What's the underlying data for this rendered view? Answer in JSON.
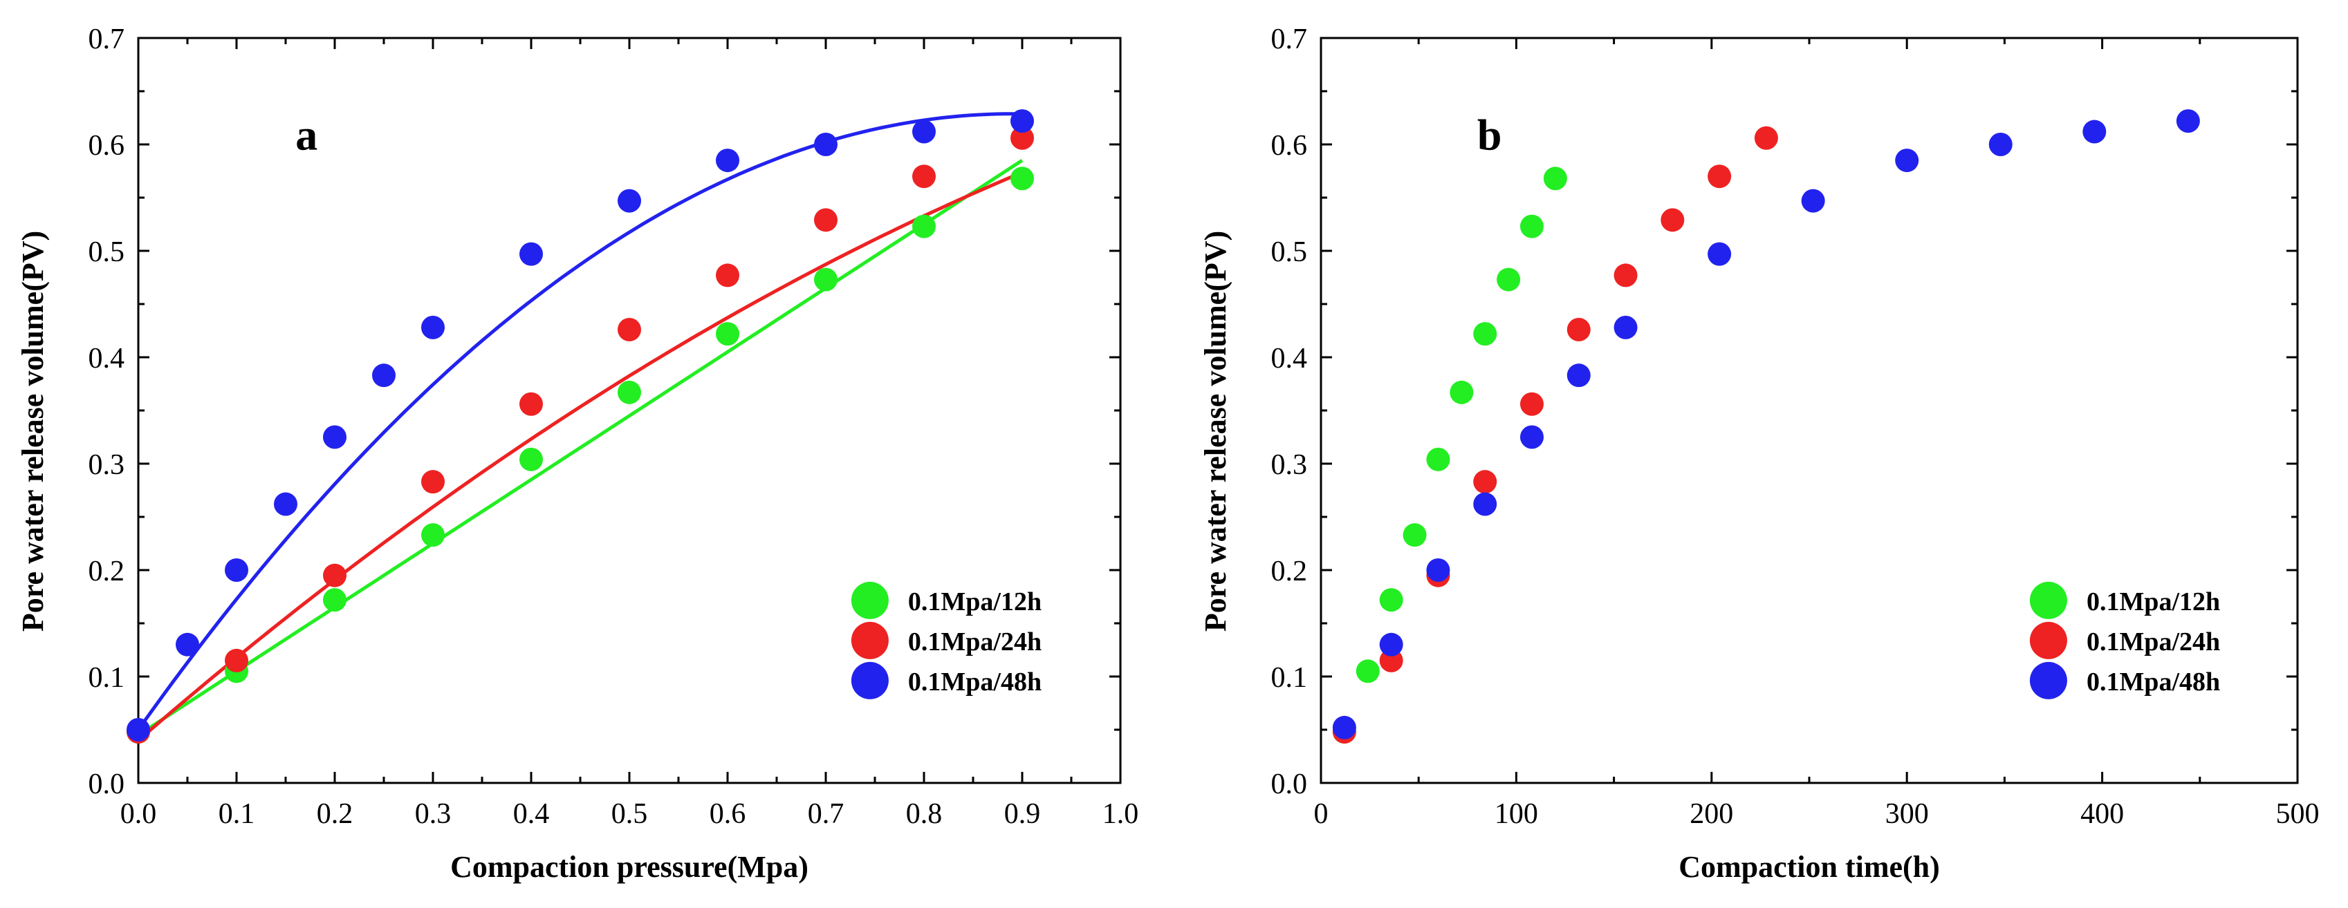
{
  "chart_data": [
    {
      "type": "scatter",
      "panel_label": "a",
      "xlabel": "Compaction pressure(Mpa)",
      "ylabel": "Pore water release volume(PV)",
      "xlim": [
        0.0,
        1.0
      ],
      "ylim": [
        0.0,
        0.7
      ],
      "xticks": [
        0.0,
        0.1,
        0.2,
        0.3,
        0.4,
        0.5,
        0.6,
        0.7,
        0.8,
        0.9,
        1.0
      ],
      "yticks": [
        0.0,
        0.1,
        0.2,
        0.3,
        0.4,
        0.5,
        0.6,
        0.7
      ],
      "tick_format": 1,
      "legend_position": "bottom-right",
      "fit_lines": true,
      "series": [
        {
          "name": "0.1Mpa/12h",
          "color": "#22ee22",
          "x": [
            0.0,
            0.1,
            0.2,
            0.3,
            0.4,
            0.5,
            0.6,
            0.7,
            0.8,
            0.9
          ],
          "y": [
            0.048,
            0.105,
            0.172,
            0.233,
            0.304,
            0.367,
            0.422,
            0.473,
            0.523,
            0.568
          ],
          "fit": [
            0.045,
            0.6,
            0.0
          ]
        },
        {
          "name": "0.1Mpa/24h",
          "color": "#ee2222",
          "x": [
            0.0,
            0.1,
            0.2,
            0.3,
            0.4,
            0.5,
            0.6,
            0.7,
            0.8,
            0.9
          ],
          "y": [
            0.048,
            0.115,
            0.195,
            0.283,
            0.356,
            0.426,
            0.477,
            0.529,
            0.57,
            0.606
          ],
          "fit": [
            0.04,
            0.8,
            -0.23
          ]
        },
        {
          "name": "0.1Mpa/48h",
          "color": "#2222ee",
          "x": [
            0.0,
            0.05,
            0.1,
            0.15,
            0.2,
            0.25,
            0.3,
            0.4,
            0.5,
            0.6,
            0.7,
            0.8,
            0.9
          ],
          "y": [
            0.05,
            0.13,
            0.2,
            0.262,
            0.325,
            0.383,
            0.428,
            0.497,
            0.547,
            0.585,
            0.6,
            0.612,
            0.622
          ],
          "fit": [
            0.05,
            1.3,
            -0.73
          ]
        }
      ]
    },
    {
      "type": "scatter",
      "panel_label": "b",
      "xlabel": "Compaction time(h)",
      "ylabel": "Pore water release volume(PV)",
      "xlim": [
        0,
        500
      ],
      "ylim": [
        0.0,
        0.7
      ],
      "xticks": [
        0,
        100,
        200,
        300,
        400,
        500
      ],
      "yticks": [
        0.0,
        0.1,
        0.2,
        0.3,
        0.4,
        0.5,
        0.6,
        0.7
      ],
      "tick_format": 0,
      "legend_position": "bottom-right",
      "fit_lines": false,
      "series": [
        {
          "name": "0.1Mpa/12h",
          "color": "#22ee22",
          "x": [
            12,
            24,
            36,
            48,
            60,
            72,
            84,
            96,
            108,
            120
          ],
          "y": [
            0.048,
            0.105,
            0.172,
            0.233,
            0.304,
            0.367,
            0.422,
            0.473,
            0.523,
            0.568
          ]
        },
        {
          "name": "0.1Mpa/24h",
          "color": "#ee2222",
          "x": [
            12,
            36,
            60,
            84,
            108,
            132,
            156,
            180,
            204,
            228
          ],
          "y": [
            0.048,
            0.115,
            0.195,
            0.283,
            0.356,
            0.426,
            0.477,
            0.529,
            0.57,
            0.606
          ]
        },
        {
          "name": "0.1Mpa/48h",
          "color": "#2222ee",
          "x": [
            12,
            36,
            60,
            84,
            108,
            132,
            156,
            204,
            252,
            300,
            348,
            396,
            444
          ],
          "y": [
            0.052,
            0.13,
            0.2,
            0.262,
            0.325,
            0.383,
            0.428,
            0.497,
            0.547,
            0.585,
            0.6,
            0.612,
            0.622
          ]
        }
      ]
    }
  ]
}
